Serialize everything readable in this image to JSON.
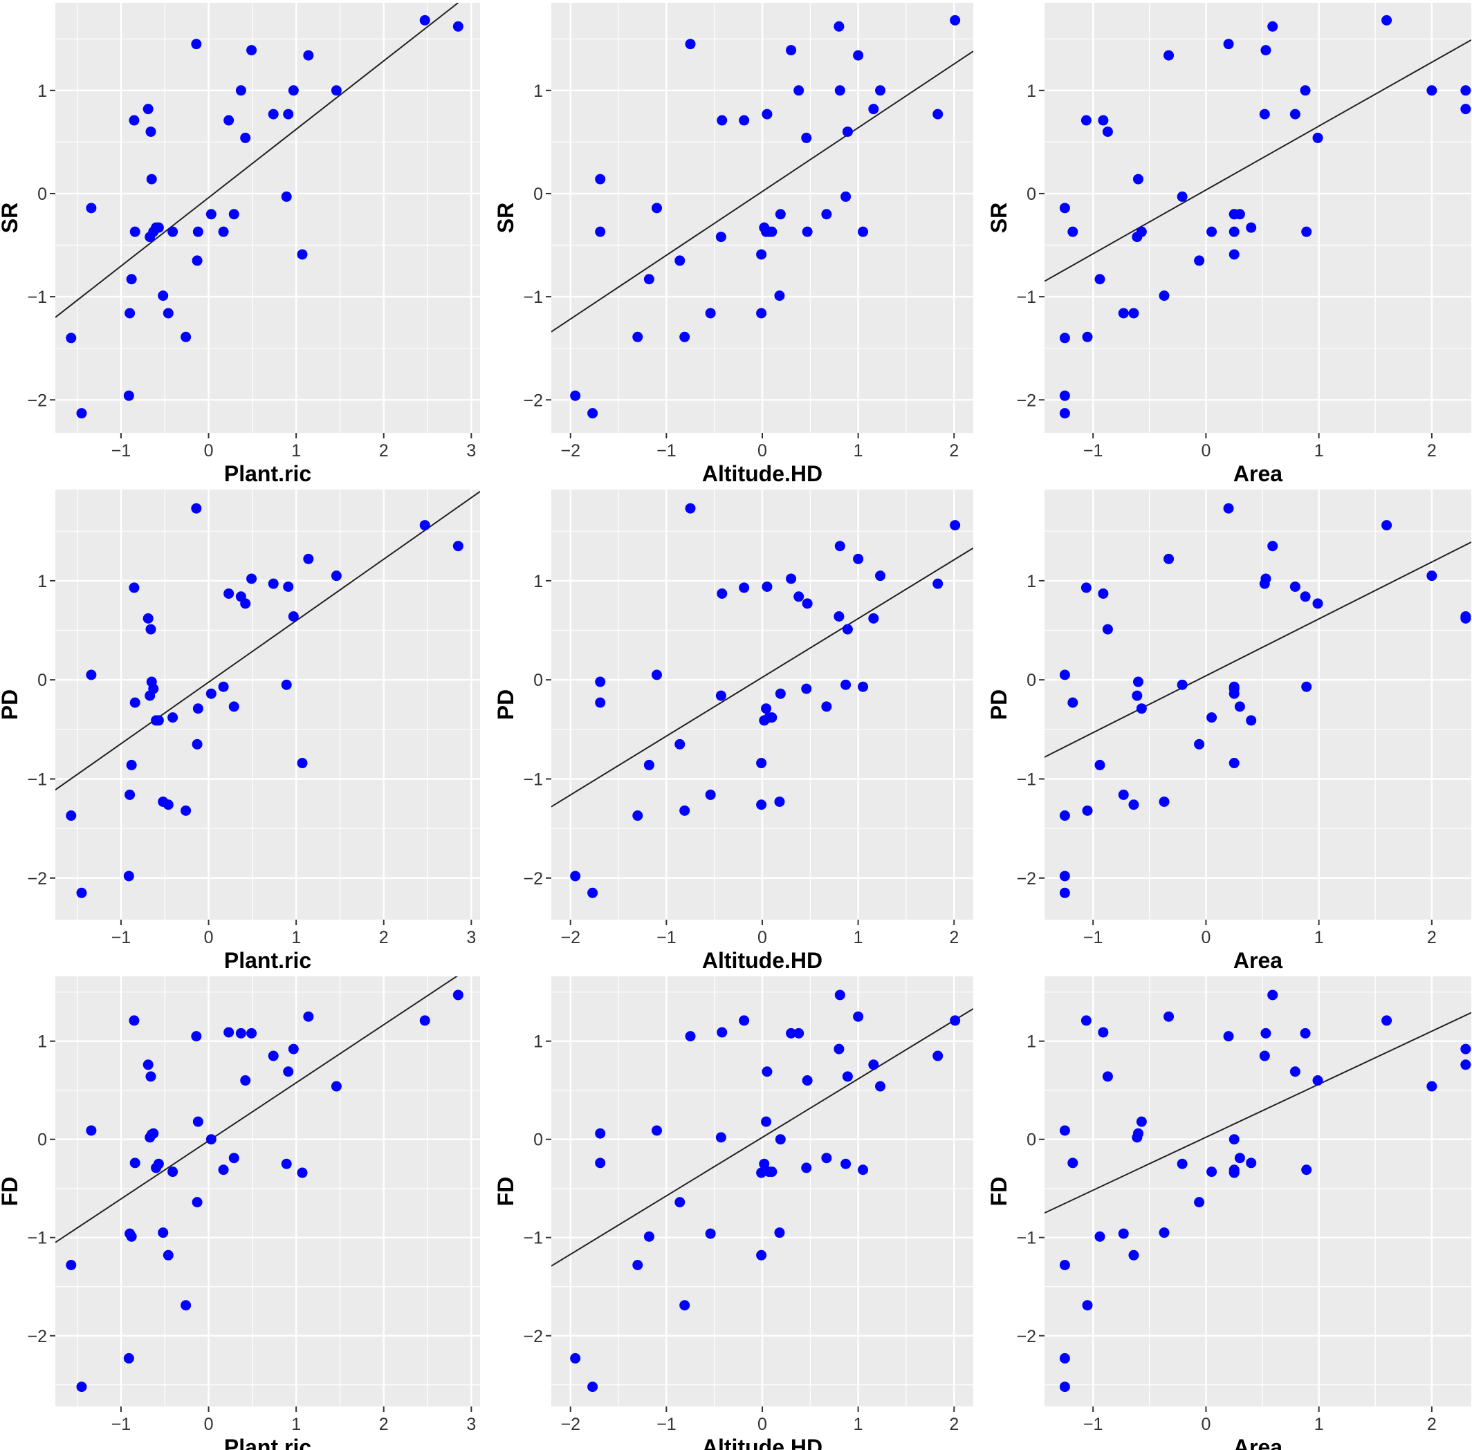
{
  "chart_data": [
    {
      "type": "scatter",
      "xlabel": "Plant.ric",
      "ylabel": "SR",
      "xlim": [
        -1.75,
        3.1
      ],
      "ylim": [
        -2.32,
        1.85
      ],
      "xticks": [
        -1,
        0,
        1,
        2,
        3
      ],
      "yticks": [
        -2,
        -1,
        0,
        1
      ],
      "fit": [
        [
          -1.75,
          -1.2
        ],
        [
          2.85,
          1.85
        ]
      ],
      "x": [
        -1.57,
        -1.45,
        -1.34,
        -0.91,
        -0.9,
        -0.88,
        -0.85,
        -0.84,
        -0.69,
        -0.67,
        -0.66,
        -0.65,
        -0.63,
        -0.6,
        -0.57,
        -0.52,
        -0.46,
        -0.41,
        -0.26,
        -0.14,
        -0.13,
        -0.12,
        0.03,
        0.17,
        0.23,
        0.29,
        0.37,
        0.42,
        0.49,
        0.74,
        0.89,
        0.91,
        0.97,
        1.07,
        1.14,
        1.46,
        2.47,
        2.85
      ],
      "y": [
        -1.4,
        -2.13,
        -0.14,
        -1.96,
        -1.16,
        -0.83,
        0.71,
        -0.37,
        0.82,
        -0.42,
        0.6,
        0.14,
        -0.37,
        -0.33,
        -0.33,
        -0.99,
        -1.16,
        -0.37,
        -1.39,
        1.45,
        -0.65,
        -0.37,
        -0.2,
        -0.37,
        0.71,
        -0.2,
        1.0,
        0.54,
        1.39,
        0.77,
        -0.03,
        0.77,
        1.0,
        -0.59,
        1.34,
        1.0,
        1.68,
        1.62
      ]
    },
    {
      "type": "scatter",
      "xlabel": "Altitude.HD",
      "ylabel": "SR",
      "xlim": [
        -2.2,
        2.2
      ],
      "ylim": [
        -2.32,
        1.85
      ],
      "xticks": [
        -2,
        -1,
        0,
        1,
        2
      ],
      "yticks": [
        -2,
        -1,
        0,
        1
      ],
      "fit": [
        [
          -2.2,
          -1.34
        ],
        [
          2.2,
          1.38
        ]
      ],
      "x": [
        -1.95,
        -1.77,
        -1.69,
        -1.69,
        -1.3,
        -1.18,
        -1.1,
        -0.86,
        -0.81,
        -0.75,
        -0.54,
        -0.43,
        -0.42,
        -0.19,
        -0.01,
        -0.01,
        0.02,
        0.04,
        0.05,
        0.07,
        0.1,
        0.18,
        0.19,
        0.3,
        0.38,
        0.46,
        0.47,
        0.67,
        0.8,
        0.81,
        0.87,
        0.89,
        1.0,
        1.05,
        1.16,
        1.23,
        1.83,
        2.01
      ],
      "y": [
        -1.96,
        -2.13,
        0.14,
        -0.37,
        -1.39,
        -0.83,
        -0.14,
        -0.65,
        -1.39,
        1.45,
        -1.16,
        -0.42,
        0.71,
        0.71,
        -1.16,
        -0.59,
        -0.33,
        -0.37,
        0.77,
        -0.37,
        -0.37,
        -0.99,
        -0.2,
        1.39,
        1.0,
        0.54,
        -0.37,
        -0.2,
        1.62,
        1.0,
        -0.03,
        0.6,
        1.34,
        -0.37,
        0.82,
        1.0,
        0.77,
        1.68
      ]
    },
    {
      "type": "scatter",
      "xlabel": "Area",
      "ylabel": "SR",
      "xlim": [
        -1.43,
        2.35
      ],
      "ylim": [
        -2.32,
        1.85
      ],
      "xticks": [
        -1,
        0,
        1,
        2
      ],
      "yticks": [
        -2,
        -1,
        0,
        1
      ],
      "fit": [
        [
          -1.43,
          -0.85
        ],
        [
          2.35,
          1.49
        ]
      ],
      "x": [
        -1.25,
        -1.25,
        -1.25,
        -1.25,
        -1.18,
        -1.06,
        -1.05,
        -0.94,
        -0.91,
        -0.87,
        -0.73,
        -0.64,
        -0.61,
        -0.6,
        -0.57,
        -0.37,
        -0.33,
        -0.21,
        -0.06,
        0.05,
        0.2,
        0.25,
        0.25,
        0.25,
        0.25,
        0.3,
        0.4,
        0.52,
        0.53,
        0.59,
        0.79,
        0.88,
        0.89,
        0.99,
        1.6,
        2.0,
        2.3,
        2.3
      ],
      "y": [
        -1.96,
        -2.13,
        -0.14,
        -1.4,
        -0.37,
        0.71,
        -1.39,
        -0.83,
        0.71,
        0.6,
        -1.16,
        -1.16,
        -0.42,
        0.14,
        -0.37,
        -0.99,
        1.34,
        -0.03,
        -0.65,
        -0.37,
        1.45,
        -0.2,
        -0.37,
        -0.59,
        -0.2,
        -0.2,
        -0.33,
        0.77,
        1.39,
        1.62,
        0.77,
        1.0,
        -0.37,
        0.54,
        1.68,
        1.0,
        1.0,
        0.82
      ]
    },
    {
      "type": "scatter",
      "xlabel": "Plant.ric",
      "ylabel": "PD",
      "xlim": [
        -1.75,
        3.1
      ],
      "ylim": [
        -2.42,
        1.92
      ],
      "xticks": [
        -1,
        0,
        1,
        2,
        3
      ],
      "yticks": [
        -2,
        -1,
        0,
        1
      ],
      "fit": [
        [
          -1.75,
          -1.11
        ],
        [
          3.1,
          1.9
        ]
      ],
      "x": [
        -1.57,
        -1.45,
        -1.34,
        -0.91,
        -0.9,
        -0.88,
        -0.85,
        -0.84,
        -0.69,
        -0.67,
        -0.66,
        -0.65,
        -0.63,
        -0.6,
        -0.57,
        -0.52,
        -0.46,
        -0.41,
        -0.26,
        -0.14,
        -0.13,
        -0.12,
        0.03,
        0.17,
        0.23,
        0.29,
        0.37,
        0.42,
        0.49,
        0.74,
        0.89,
        0.91,
        0.97,
        1.07,
        1.14,
        1.46,
        2.47,
        2.85
      ],
      "y": [
        -1.37,
        -2.15,
        0.05,
        -1.98,
        -1.16,
        -0.86,
        0.93,
        -0.23,
        0.62,
        -0.16,
        0.51,
        -0.02,
        -0.09,
        -0.41,
        -0.41,
        -1.23,
        -1.26,
        -0.38,
        -1.32,
        1.73,
        -0.65,
        -0.29,
        -0.14,
        -0.07,
        0.87,
        -0.27,
        0.84,
        0.77,
        1.02,
        0.97,
        -0.05,
        0.94,
        0.64,
        -0.84,
        1.22,
        1.05,
        1.56,
        1.35
      ]
    },
    {
      "type": "scatter",
      "xlabel": "Altitude.HD",
      "ylabel": "PD",
      "xlim": [
        -2.2,
        2.2
      ],
      "ylim": [
        -2.42,
        1.92
      ],
      "xticks": [
        -2,
        -1,
        0,
        1,
        2
      ],
      "yticks": [
        -2,
        -1,
        0,
        1
      ],
      "fit": [
        [
          -2.2,
          -1.28
        ],
        [
          2.2,
          1.33
        ]
      ],
      "x": [
        -1.95,
        -1.77,
        -1.69,
        -1.69,
        -1.3,
        -1.18,
        -1.1,
        -0.86,
        -0.81,
        -0.75,
        -0.54,
        -0.43,
        -0.42,
        -0.19,
        -0.01,
        -0.01,
        0.02,
        0.04,
        0.05,
        0.07,
        0.1,
        0.18,
        0.19,
        0.3,
        0.38,
        0.46,
        0.47,
        0.67,
        0.8,
        0.81,
        0.87,
        0.89,
        1.0,
        1.05,
        1.16,
        1.23,
        1.83,
        2.01
      ],
      "y": [
        -1.98,
        -2.15,
        -0.02,
        -0.23,
        -1.37,
        -0.86,
        0.05,
        -0.65,
        -1.32,
        1.73,
        -1.16,
        -0.16,
        0.87,
        0.93,
        -1.26,
        -0.84,
        -0.41,
        -0.29,
        0.94,
        -0.38,
        -0.38,
        -1.23,
        -0.14,
        1.02,
        0.84,
        -0.09,
        0.77,
        -0.27,
        0.64,
        1.35,
        -0.05,
        0.51,
        1.22,
        -0.07,
        0.62,
        1.05,
        0.97,
        1.56
      ]
    },
    {
      "type": "scatter",
      "xlabel": "Area",
      "ylabel": "PD",
      "xlim": [
        -1.43,
        2.35
      ],
      "ylim": [
        -2.42,
        1.92
      ],
      "xticks": [
        -1,
        0,
        1,
        2
      ],
      "yticks": [
        -2,
        -1,
        0,
        1
      ],
      "fit": [
        [
          -1.43,
          -0.78
        ],
        [
          2.35,
          1.39
        ]
      ],
      "x": [
        -1.25,
        -1.25,
        -1.25,
        -1.25,
        -1.18,
        -1.06,
        -1.05,
        -0.94,
        -0.91,
        -0.87,
        -0.73,
        -0.64,
        -0.61,
        -0.6,
        -0.57,
        -0.37,
        -0.33,
        -0.21,
        -0.06,
        0.05,
        0.2,
        0.25,
        0.25,
        0.25,
        0.25,
        0.3,
        0.4,
        0.52,
        0.53,
        0.59,
        0.79,
        0.88,
        0.89,
        0.99,
        1.6,
        2.0,
        2.3,
        2.3
      ],
      "y": [
        -1.98,
        -2.15,
        0.05,
        -1.37,
        -0.23,
        0.93,
        -1.32,
        -0.86,
        0.87,
        0.51,
        -1.16,
        -1.26,
        -0.16,
        -0.02,
        -0.29,
        -1.23,
        1.22,
        -0.05,
        -0.65,
        -0.38,
        1.73,
        -0.84,
        -0.14,
        -0.09,
        -0.07,
        -0.27,
        -0.41,
        0.97,
        1.02,
        1.35,
        0.94,
        0.84,
        -0.07,
        0.77,
        1.56,
        1.05,
        0.62,
        0.64
      ]
    },
    {
      "type": "scatter",
      "xlabel": "Plant.ric",
      "ylabel": "FD",
      "xlim": [
        -1.75,
        3.1
      ],
      "ylim": [
        -2.72,
        1.66
      ],
      "xticks": [
        -1,
        0,
        1,
        2,
        3
      ],
      "yticks": [
        -2,
        -1,
        0,
        1
      ],
      "fit": [
        [
          -1.75,
          -1.05
        ],
        [
          2.85,
          1.67
        ]
      ],
      "x": [
        -1.57,
        -1.45,
        -1.34,
        -0.91,
        -0.9,
        -0.88,
        -0.85,
        -0.84,
        -0.69,
        -0.67,
        -0.66,
        -0.65,
        -0.63,
        -0.6,
        -0.57,
        -0.52,
        -0.46,
        -0.41,
        -0.26,
        -0.14,
        -0.13,
        -0.12,
        0.03,
        0.17,
        0.23,
        0.29,
        0.37,
        0.42,
        0.49,
        0.74,
        0.89,
        0.91,
        0.97,
        1.07,
        1.14,
        1.46,
        2.47,
        2.85
      ],
      "y": [
        -1.28,
        -2.52,
        0.09,
        -2.23,
        -0.96,
        -0.99,
        1.21,
        -0.24,
        0.76,
        0.02,
        0.64,
        0.05,
        0.06,
        -0.29,
        -0.25,
        -0.95,
        -1.18,
        -0.33,
        -1.69,
        1.05,
        -0.64,
        0.18,
        0.0,
        -0.31,
        1.09,
        -0.19,
        1.08,
        0.6,
        1.08,
        0.85,
        -0.25,
        0.69,
        0.92,
        -0.34,
        1.25,
        0.54,
        1.21,
        1.47
      ]
    },
    {
      "type": "scatter",
      "xlabel": "Altitude.HD",
      "ylabel": "FD",
      "xlim": [
        -2.2,
        2.2
      ],
      "ylim": [
        -2.72,
        1.66
      ],
      "xticks": [
        -2,
        -1,
        0,
        1,
        2
      ],
      "yticks": [
        -2,
        -1,
        0,
        1
      ],
      "fit": [
        [
          -2.2,
          -1.29
        ],
        [
          2.2,
          1.33
        ]
      ],
      "x": [
        -1.95,
        -1.77,
        -1.69,
        -1.69,
        -1.3,
        -1.18,
        -1.1,
        -0.86,
        -0.81,
        -0.75,
        -0.54,
        -0.43,
        -0.42,
        -0.19,
        -0.01,
        -0.01,
        0.02,
        0.04,
        0.05,
        0.07,
        0.1,
        0.18,
        0.19,
        0.3,
        0.38,
        0.46,
        0.47,
        0.67,
        0.8,
        0.81,
        0.87,
        0.89,
        1.0,
        1.05,
        1.16,
        1.23,
        1.83,
        2.01
      ],
      "y": [
        -2.23,
        -2.52,
        0.06,
        -0.24,
        -1.28,
        -0.99,
        0.09,
        -0.64,
        -1.69,
        1.05,
        -0.96,
        0.02,
        1.09,
        1.21,
        -1.18,
        -0.34,
        -0.25,
        0.18,
        0.69,
        -0.33,
        -0.33,
        -0.95,
        0.0,
        1.08,
        1.08,
        -0.29,
        0.6,
        -0.19,
        0.92,
        1.47,
        -0.25,
        0.64,
        1.25,
        -0.31,
        0.76,
        0.54,
        0.85,
        1.21
      ]
    },
    {
      "type": "scatter",
      "xlabel": "Area",
      "ylabel": "FD",
      "xlim": [
        -1.43,
        2.35
      ],
      "ylim": [
        -2.72,
        1.66
      ],
      "xticks": [
        -1,
        0,
        1,
        2
      ],
      "yticks": [
        -2,
        -1,
        0,
        1
      ],
      "fit": [
        [
          -1.43,
          -0.75
        ],
        [
          2.35,
          1.29
        ]
      ],
      "x": [
        -1.25,
        -1.25,
        -1.25,
        -1.25,
        -1.18,
        -1.06,
        -1.05,
        -0.94,
        -0.91,
        -0.87,
        -0.73,
        -0.64,
        -0.61,
        -0.6,
        -0.57,
        -0.37,
        -0.33,
        -0.21,
        -0.06,
        0.05,
        0.2,
        0.25,
        0.25,
        0.25,
        0.25,
        0.3,
        0.4,
        0.52,
        0.53,
        0.59,
        0.79,
        0.88,
        0.89,
        0.99,
        1.6,
        2.0,
        2.3,
        2.3
      ],
      "y": [
        -2.23,
        -2.52,
        0.09,
        -1.28,
        -0.24,
        1.21,
        -1.69,
        -0.99,
        1.09,
        0.64,
        -0.96,
        -1.18,
        0.02,
        0.06,
        0.18,
        -0.95,
        1.25,
        -0.25,
        -0.64,
        -0.33,
        1.05,
        0.0,
        -0.34,
        -0.31,
        -0.33,
        -0.19,
        -0.24,
        0.85,
        1.08,
        1.47,
        0.69,
        1.08,
        -0.31,
        0.6,
        1.21,
        0.54,
        0.92,
        0.76
      ]
    }
  ]
}
